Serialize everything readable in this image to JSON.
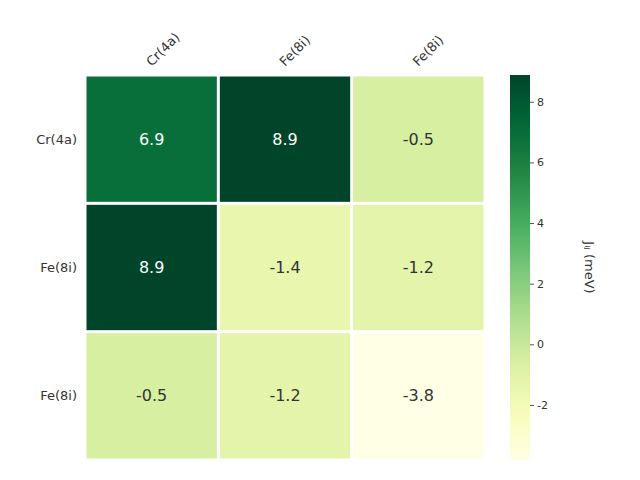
{
  "chart_data": {
    "type": "heatmap",
    "x_categories": [
      "Cr(4a)",
      "Fe(8i)",
      "Fe(8i)"
    ],
    "y_categories": [
      "Cr(4a)",
      "Fe(8i)",
      "Fe(8i)"
    ],
    "values": [
      [
        6.9,
        8.9,
        -0.5
      ],
      [
        8.9,
        -1.4,
        -1.2
      ],
      [
        -0.5,
        -1.2,
        -3.8
      ]
    ],
    "color_range": [
      -3.8,
      8.9
    ],
    "color_ticks": [
      -2,
      0,
      2,
      4,
      6,
      8
    ],
    "color_label": "Jᵢⱼ (meV)",
    "data_labels": true
  }
}
